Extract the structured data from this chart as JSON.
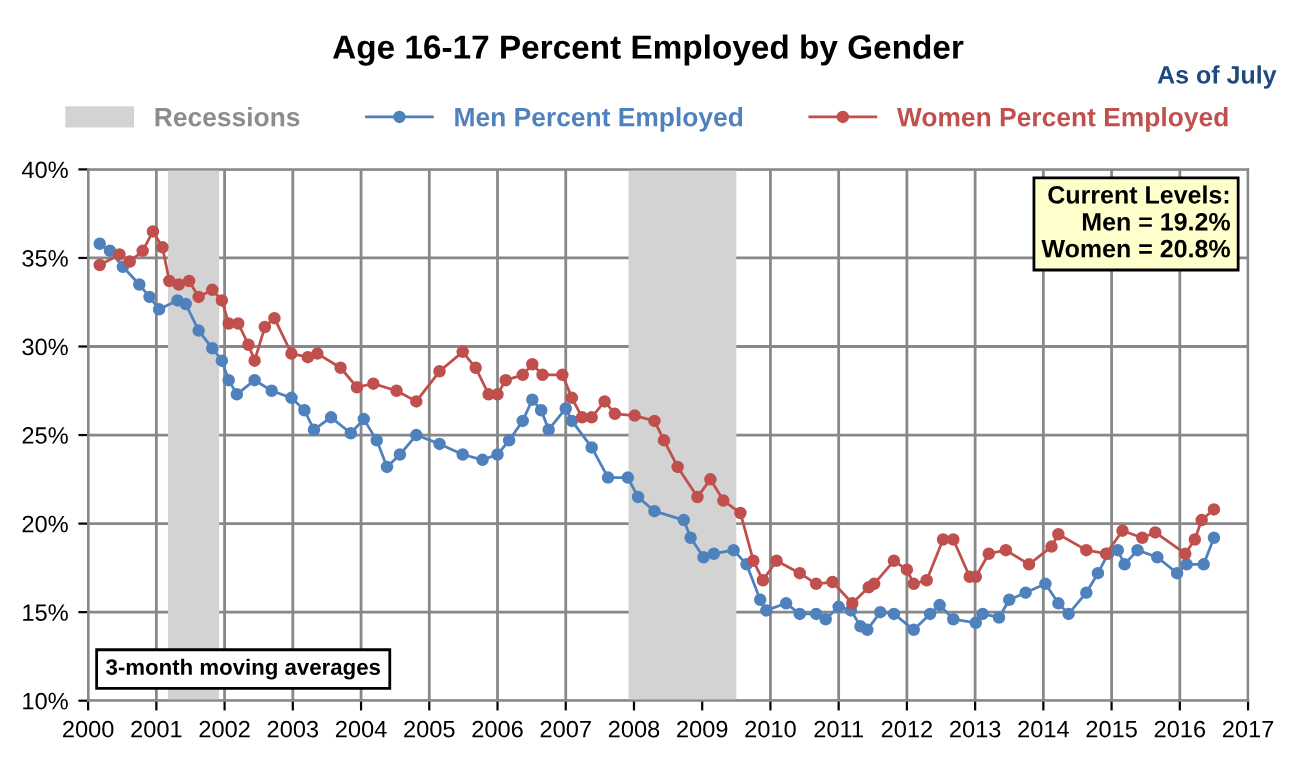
{
  "chart_data": {
    "type": "line",
    "title": "Age 16-17 Percent Employed by Gender",
    "series": [
      {
        "name": "Men Percent Employed",
        "color": "#4f81bd",
        "x": [
          2000.17,
          2000.32,
          2000.51,
          2000.75,
          2000.9,
          2001.04,
          2001.31,
          2001.43,
          2001.62,
          2001.82,
          2001.96,
          2002.06,
          2002.18,
          2002.44,
          2002.69,
          2002.98,
          2003.17,
          2003.31,
          2003.56,
          2003.85,
          2004.04,
          2004.23,
          2004.38,
          2004.57,
          2004.81,
          2005.15,
          2005.49,
          2005.78,
          2006.0,
          2006.17,
          2006.37,
          2006.51,
          2006.64,
          2006.75,
          2007.0,
          2007.09,
          2007.38,
          2007.62,
          2007.91,
          2008.06,
          2008.3,
          2008.73,
          2008.83,
          2009.02,
          2009.17,
          2009.46,
          2009.65,
          2009.85,
          2009.94,
          2010.23,
          2010.43,
          2010.67,
          2010.81,
          2011.0,
          2011.18,
          2011.32,
          2011.42,
          2011.61,
          2011.81,
          2012.1,
          2012.34,
          2012.48,
          2012.68,
          2013.01,
          2013.11,
          2013.35,
          2013.5,
          2013.74,
          2014.03,
          2014.22,
          2014.37,
          2014.63,
          2014.8,
          2014.95,
          2015.09,
          2015.19,
          2015.38,
          2015.67,
          2015.96,
          2016.1,
          2016.35,
          2016.5
        ],
        "values": [
          35.8,
          35.4,
          34.5,
          33.5,
          32.8,
          32.1,
          32.6,
          32.4,
          30.9,
          29.9,
          29.2,
          28.1,
          27.3,
          28.1,
          27.5,
          27.1,
          26.4,
          25.3,
          26.0,
          25.1,
          25.9,
          24.7,
          23.2,
          23.9,
          25.0,
          24.5,
          23.9,
          23.6,
          23.9,
          24.7,
          25.8,
          27.0,
          26.4,
          25.3,
          26.5,
          25.8,
          24.3,
          22.6,
          22.6,
          21.5,
          20.7,
          20.2,
          19.2,
          18.1,
          18.3,
          18.5,
          17.7,
          15.7,
          15.1,
          15.5,
          14.9,
          14.9,
          14.6,
          15.3,
          15.1,
          14.2,
          14.0,
          15.0,
          14.9,
          14.0,
          14.9,
          15.4,
          14.6,
          14.4,
          14.9,
          14.7,
          15.7,
          16.1,
          16.6,
          15.5,
          14.9,
          16.1,
          17.2,
          18.3,
          18.5,
          17.7,
          18.5,
          18.1,
          17.2,
          17.7,
          17.7,
          19.2
        ]
      },
      {
        "name": "Women Percent Employed",
        "color": "#c0504d",
        "x": [
          2000.17,
          2000.46,
          2000.61,
          2000.8,
          2000.95,
          2001.09,
          2001.19,
          2001.33,
          2001.48,
          2001.62,
          2001.82,
          2001.96,
          2002.06,
          2002.2,
          2002.35,
          2002.44,
          2002.59,
          2002.73,
          2002.98,
          2003.22,
          2003.36,
          2003.7,
          2003.94,
          2004.18,
          2004.52,
          2004.81,
          2005.15,
          2005.49,
          2005.68,
          2005.87,
          2006.0,
          2006.12,
          2006.37,
          2006.51,
          2006.66,
          2006.95,
          2007.09,
          2007.24,
          2007.38,
          2007.57,
          2007.72,
          2008.01,
          2008.3,
          2008.44,
          2008.64,
          2008.93,
          2009.12,
          2009.31,
          2009.56,
          2009.75,
          2009.89,
          2010.09,
          2010.43,
          2010.67,
          2010.91,
          2011.2,
          2011.44,
          2011.52,
          2011.81,
          2012.0,
          2012.1,
          2012.29,
          2012.53,
          2012.68,
          2012.92,
          2013.01,
          2013.2,
          2013.45,
          2013.79,
          2014.12,
          2014.22,
          2014.63,
          2014.92,
          2015.16,
          2015.45,
          2015.64,
          2016.08,
          2016.22,
          2016.32,
          2016.5
        ],
        "values": [
          34.6,
          35.2,
          34.8,
          35.4,
          36.5,
          35.6,
          33.7,
          33.5,
          33.7,
          32.8,
          33.2,
          32.6,
          31.3,
          31.3,
          30.1,
          29.2,
          31.1,
          31.6,
          29.6,
          29.4,
          29.6,
          28.8,
          27.7,
          27.9,
          27.5,
          26.9,
          28.6,
          29.7,
          28.8,
          27.3,
          27.3,
          28.1,
          28.4,
          29.0,
          28.4,
          28.4,
          27.1,
          26.0,
          26.0,
          26.9,
          26.2,
          26.1,
          25.8,
          24.7,
          23.2,
          21.5,
          22.5,
          21.3,
          20.6,
          17.9,
          16.8,
          17.9,
          17.2,
          16.6,
          16.7,
          15.5,
          16.4,
          16.6,
          17.9,
          17.4,
          16.6,
          16.8,
          19.1,
          19.1,
          17.0,
          17.0,
          18.3,
          18.5,
          17.7,
          18.7,
          19.4,
          18.5,
          18.3,
          19.6,
          19.2,
          19.5,
          18.3,
          19.1,
          20.2,
          20.8
        ]
      }
    ],
    "xlim": [
      2000,
      2017
    ],
    "xticks": [
      2000,
      2001,
      2002,
      2003,
      2004,
      2005,
      2006,
      2007,
      2008,
      2009,
      2010,
      2011,
      2012,
      2013,
      2014,
      2015,
      2016,
      2017
    ],
    "ylim": [
      10,
      40
    ],
    "yticks": [
      {
        "value": 10,
        "label": "10%"
      },
      {
        "value": 15,
        "label": "15%"
      },
      {
        "value": 20,
        "label": "20%"
      },
      {
        "value": 25,
        "label": "25%"
      },
      {
        "value": 30,
        "label": "30%"
      },
      {
        "value": 35,
        "label": "35%"
      },
      {
        "value": 40,
        "label": "40%"
      }
    ],
    "bands": [
      {
        "axis": "x",
        "from": 2001.17,
        "to": 2001.92,
        "label": "Recessions",
        "color": "#d3d3d3"
      },
      {
        "axis": "x",
        "from": 2007.92,
        "to": 2009.5,
        "color": "#d3d3d3"
      }
    ],
    "annotations": [
      "As of July",
      "Current Levels:\nMen = 19.2%\nWomen = 20.8%",
      "3-month moving averages"
    ],
    "grid": true,
    "legend": "top",
    "marker": "circle",
    "line_style": "solid"
  }
}
